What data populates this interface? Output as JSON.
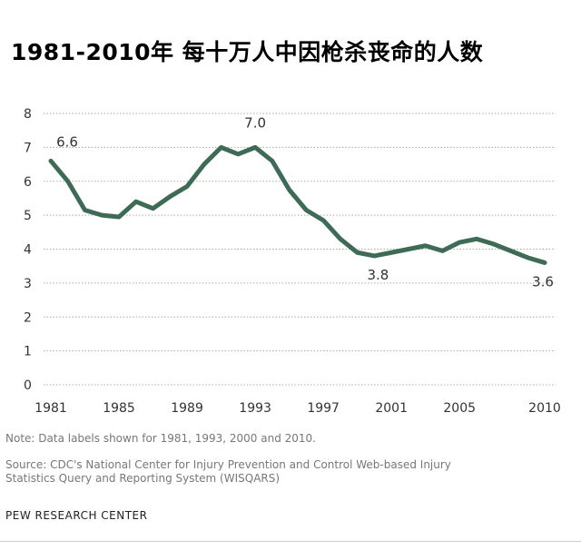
{
  "chart_data": {
    "type": "line",
    "title": "1981-2010年 每十万人中因枪杀丧命的人数",
    "xlabel": "",
    "ylabel": "",
    "x": [
      1981,
      1982,
      1983,
      1984,
      1985,
      1986,
      1987,
      1988,
      1989,
      1990,
      1991,
      1992,
      1993,
      1994,
      1995,
      1996,
      1997,
      1998,
      1999,
      2000,
      2001,
      2002,
      2003,
      2004,
      2005,
      2006,
      2007,
      2008,
      2009,
      2010
    ],
    "series": [
      {
        "values": [
          6.6,
          6.0,
          5.15,
          5.0,
          4.95,
          5.4,
          5.2,
          5.55,
          5.85,
          6.5,
          7.0,
          6.8,
          7.0,
          6.6,
          5.75,
          5.15,
          4.85,
          4.3,
          3.9,
          3.8,
          3.9,
          4.0,
          4.1,
          3.95,
          4.2,
          4.3,
          4.15,
          3.95,
          3.75,
          3.6
        ],
        "color": "#3d6b55"
      }
    ],
    "ylim": [
      0,
      8
    ],
    "yticks": [
      "0",
      "1",
      "2",
      "3",
      "4",
      "5",
      "6",
      "7",
      "8"
    ],
    "xticks": [
      "1981",
      "1985",
      "1989",
      "1993",
      "1997",
      "2001",
      "2005",
      "2010"
    ],
    "data_labels": [
      {
        "x": 1981,
        "text": "6.6"
      },
      {
        "x": 1993,
        "text": "7.0"
      },
      {
        "x": 2000,
        "text": "3.8"
      },
      {
        "x": 2010,
        "text": "3.6"
      }
    ],
    "grid": "horizontal dotted"
  },
  "note": "Note: Data labels shown for 1981, 1993, 2000 and 2010.",
  "source_line1": "Source: CDC's  National Center for Injury  Prevention and Control Web-based Injury",
  "source_line2": "Statistics Query and Reporting System (WISQARS)",
  "brand": "PEW RESEARCH  CENTER"
}
